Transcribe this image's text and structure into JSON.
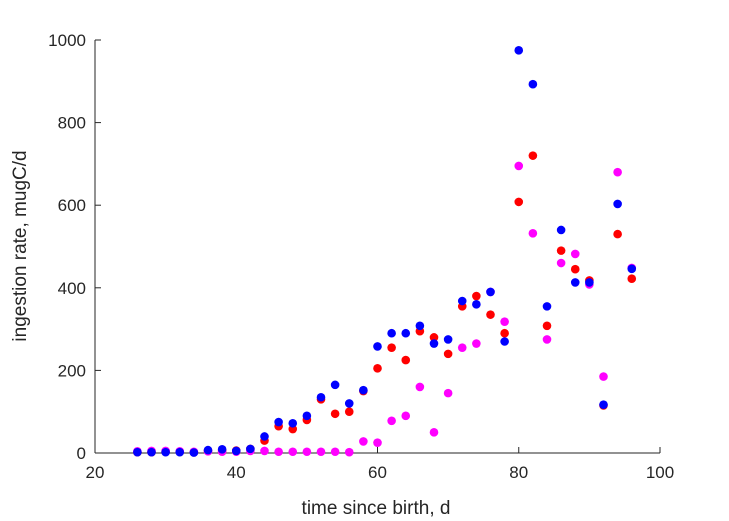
{
  "chart_data": {
    "type": "scatter",
    "title": "",
    "xlabel": "time since birth, d",
    "ylabel": "ingestion rate, mugC/d",
    "xlim": [
      20,
      100
    ],
    "ylim": [
      0,
      1000
    ],
    "xticks": [
      20,
      40,
      60,
      80,
      100
    ],
    "yticks": [
      0,
      200,
      400,
      600,
      800,
      1000
    ],
    "xtick_labels": [
      "20",
      "40",
      "60",
      "80",
      "100"
    ],
    "ytick_labels": [
      "0",
      "200",
      "400",
      "600",
      "800",
      "1000"
    ],
    "grid": false,
    "legend": "none",
    "series": [
      {
        "color": "#ff0000",
        "x": [
          26,
          28,
          30,
          32,
          34,
          36,
          38,
          40,
          42,
          44,
          46,
          48,
          50,
          52,
          54,
          56,
          58,
          60,
          62,
          64,
          66,
          68,
          70,
          72,
          74,
          76,
          78,
          80,
          82,
          84,
          86,
          88,
          90,
          92,
          94,
          96
        ],
        "y": [
          2,
          2,
          3,
          3,
          2,
          5,
          5,
          6,
          10,
          30,
          65,
          58,
          80,
          130,
          95,
          100,
          150,
          205,
          255,
          225,
          295,
          280,
          240,
          355,
          380,
          335,
          290,
          608,
          720,
          308,
          490,
          445,
          418,
          115,
          530,
          422
        ]
      },
      {
        "color": "#ff00ff",
        "x": [
          26,
          28,
          30,
          32,
          34,
          36,
          38,
          40,
          42,
          44,
          46,
          48,
          50,
          52,
          54,
          56,
          58,
          60,
          62,
          64,
          66,
          68,
          70,
          72,
          74,
          76,
          78,
          80,
          82,
          84,
          86,
          88,
          90,
          92,
          94,
          96
        ],
        "y": [
          4,
          5,
          5,
          4,
          3,
          4,
          3,
          3,
          5,
          5,
          3,
          3,
          3,
          3,
          3,
          2,
          28,
          25,
          78,
          90,
          160,
          50,
          145,
          255,
          265,
          390,
          318,
          695,
          532,
          275,
          460,
          482,
          408,
          185,
          680,
          448
        ]
      },
      {
        "color": "#0000ff",
        "x": [
          26,
          28,
          30,
          32,
          34,
          36,
          38,
          40,
          42,
          44,
          46,
          48,
          50,
          52,
          54,
          56,
          58,
          60,
          62,
          64,
          66,
          68,
          70,
          72,
          74,
          76,
          78,
          80,
          82,
          84,
          86,
          88,
          90,
          92,
          94,
          96
        ],
        "y": [
          2,
          2,
          2,
          2,
          1,
          7,
          9,
          5,
          10,
          40,
          75,
          72,
          90,
          135,
          165,
          120,
          152,
          258,
          290,
          290,
          308,
          265,
          275,
          368,
          360,
          390,
          270,
          975,
          893,
          355,
          540,
          413,
          413,
          117,
          603,
          446
        ]
      }
    ]
  }
}
